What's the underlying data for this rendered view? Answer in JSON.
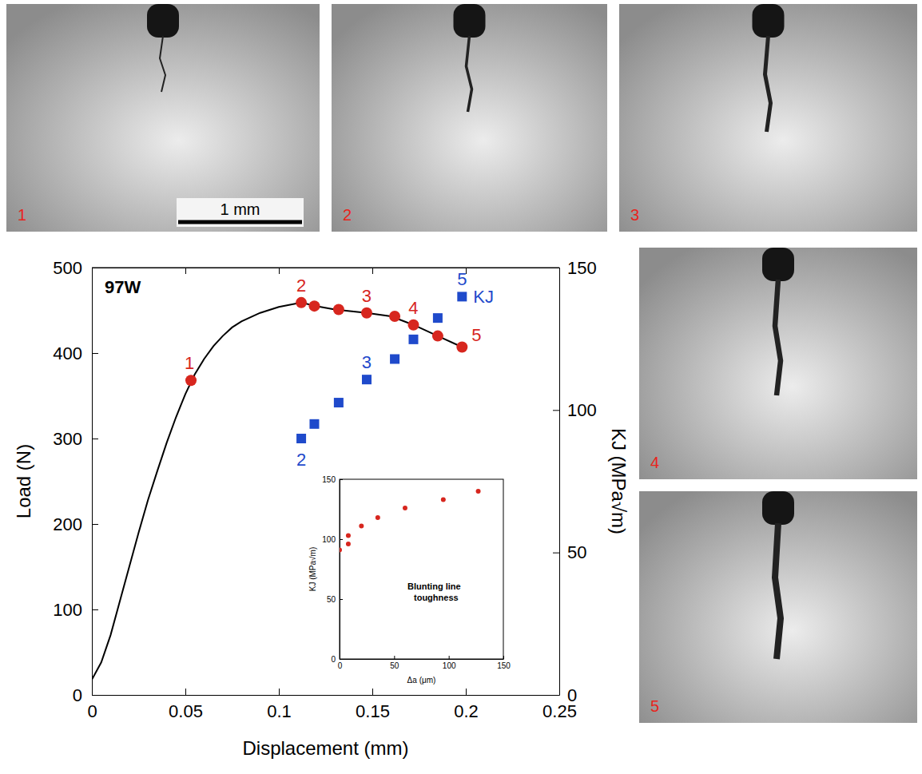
{
  "chart_data": [
    {
      "type": "line",
      "title": "97W",
      "xlabel": "Displacement (mm)",
      "ylabel": "Load (N)",
      "y2label": "KJ (MPa√m)",
      "xlim": [
        0,
        0.25
      ],
      "xticks": [
        0,
        0.05,
        0.1,
        0.15,
        0.2,
        0.25
      ],
      "ylim": [
        0,
        500
      ],
      "yticks": [
        0,
        100,
        200,
        300,
        400,
        500
      ],
      "y2lim": [
        0,
        150
      ],
      "y2ticks": [
        0,
        50,
        100,
        150
      ],
      "series": [
        {
          "type": "line",
          "color": "#000000",
          "line_style": "solid",
          "x": [
            0,
            0.005,
            0.01,
            0.015,
            0.02,
            0.025,
            0.03,
            0.035,
            0.04,
            0.045,
            0.05,
            0.055,
            0.06,
            0.065,
            0.07,
            0.075,
            0.08,
            0.09,
            0.1,
            0.112,
            0.12,
            0.13,
            0.147,
            0.16,
            0.172,
            0.185,
            0.198
          ],
          "values": [
            18,
            38,
            70,
            110,
            150,
            190,
            228,
            262,
            295,
            325,
            352,
            375,
            393,
            408,
            420,
            430,
            437,
            447,
            454,
            459,
            455,
            451,
            447,
            443,
            433,
            420,
            407
          ]
        },
        {
          "type": "scatter",
          "color": "#d7261e",
          "marker": "circle",
          "x": [
            0.053,
            0.112,
            0.119,
            0.132,
            0.147,
            0.162,
            0.172,
            0.185,
            0.198
          ],
          "values": [
            368,
            459,
            455,
            451,
            447,
            443,
            433,
            420,
            407
          ],
          "point_labels": [
            "1",
            "2",
            null,
            null,
            "3",
            null,
            "4",
            null,
            "5"
          ]
        },
        {
          "type": "scatter",
          "axis": "y2",
          "name": "KJ",
          "color": "#1f4acb",
          "marker": "square",
          "x": [
            0.112,
            0.119,
            0.132,
            0.147,
            0.162,
            0.172,
            0.185,
            0.198
          ],
          "values": [
            90,
            95.1,
            102.6,
            110.7,
            117.9,
            124.8,
            132.3,
            139.8
          ],
          "point_labels": [
            "2",
            null,
            null,
            "3",
            null,
            null,
            null,
            "5"
          ]
        }
      ]
    },
    {
      "type": "scatter",
      "xlabel": "Δa (μm)",
      "ylabel": "KJ (MPa√m)",
      "annotation": [
        "Blunting line",
        "toughness"
      ],
      "xlim": [
        0,
        150
      ],
      "xticks": [
        0,
        50,
        100,
        150
      ],
      "ylim": [
        0,
        150
      ],
      "yticks": [
        0,
        50,
        100,
        150
      ],
      "series": [
        {
          "type": "scatter",
          "color": "#d7261e",
          "marker": "circle",
          "x": [
            0,
            8,
            8,
            20,
            35,
            60,
            95,
            127
          ],
          "values": [
            91,
            96,
            103,
            111,
            118,
            126,
            133,
            140
          ]
        }
      ]
    }
  ],
  "images": {
    "panels": [
      "1",
      "2",
      "3",
      "4",
      "5"
    ],
    "scale_bar": "1 mm"
  }
}
